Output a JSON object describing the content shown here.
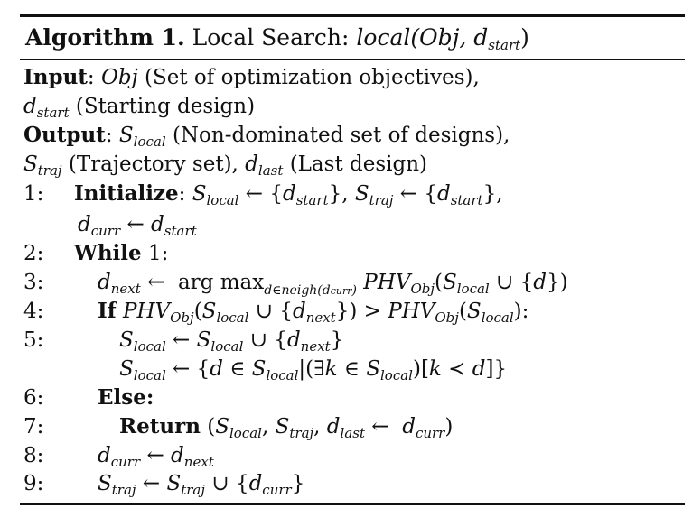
{
  "title": {
    "label": "Algorithm 1.",
    "name": "Local Search:",
    "signature": "local(Obj, d",
    "signature_sub": "start",
    "signature_end": ")"
  },
  "header": {
    "input_label": "Input",
    "input_obj": "Obj",
    "input_obj_desc": "(Set of optimization objectives),",
    "input_dstart": "d",
    "input_dstart_sub": "start",
    "input_dstart_desc": "(Starting design)",
    "output_label": "Output",
    "output_s": "S",
    "output_s_sub": "local",
    "output_s_desc": "(Non-dominated set of designs),",
    "traj_s": "S",
    "traj_s_sub": "traj",
    "traj_desc": "(Trajectory set),",
    "last_d": "d",
    "last_d_sub": "last",
    "last_desc": "(Last design)"
  },
  "steps": [
    {
      "num": "1:",
      "keyword": "Initialize",
      "text": ": S_local ← {d_start}, S_traj ← {d_start},"
    },
    {
      "num": "",
      "keyword": "",
      "text": "d_curr ← d_start"
    },
    {
      "num": "2:",
      "keyword": "While",
      "text": " 1:"
    },
    {
      "num": "3:",
      "keyword": "",
      "text": "d_next ← arg max_{d∈neigh(d_curr)} PHV_Obj(S_local ∪ {d})"
    },
    {
      "num": "4:",
      "keyword": "If",
      "text": " PHV_Obj(S_local ∪ {d_next}) > PHV_Obj(S_local):"
    },
    {
      "num": "5:",
      "keyword": "",
      "text": "S_local ← S_local ∪ {d_next}"
    },
    {
      "num": "",
      "keyword": "",
      "text": "S_local ← {d ∈ S_local|(∃k ∈ S_local)[k ≺ d]}"
    },
    {
      "num": "6:",
      "keyword": "Else:",
      "text": ""
    },
    {
      "num": "7:",
      "keyword": "Return",
      "text": " (S_local, S_traj, d_last ← d_curr)"
    },
    {
      "num": "8:",
      "keyword": "",
      "text": "d_curr ← d_next"
    },
    {
      "num": "9:",
      "keyword": "",
      "text": "S_traj ← S_traj ∪ {d_curr}"
    }
  ]
}
